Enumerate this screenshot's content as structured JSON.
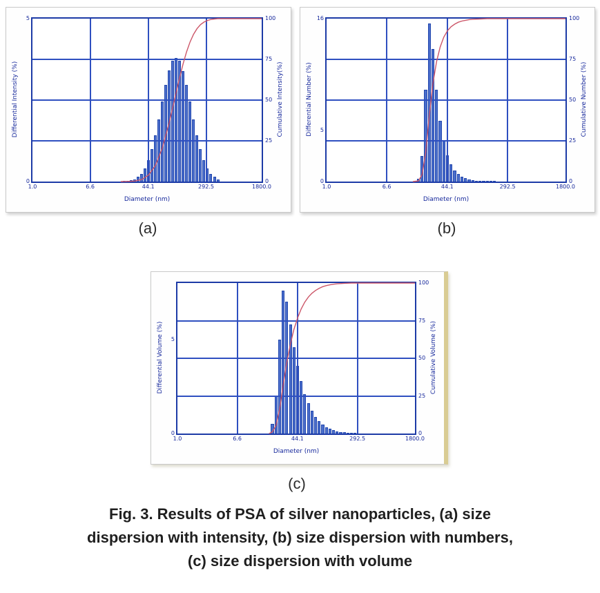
{
  "figure": {
    "caption_lines": [
      "Fig. 3. Results of PSA of silver nanoparticles, (a) size",
      "dispersion with intensity, (b) size dispersion with numbers,",
      "(c) size dispersion with volume"
    ]
  },
  "colors": {
    "bar_fill": "#4a6ecb",
    "bar_edge": "#2347ae",
    "grid": "#2e4fc0",
    "frame": "#1c3aa6",
    "curve": "#cc5668",
    "axis_text": "#15279b"
  },
  "chart_data": [
    {
      "type": "bar",
      "panel_label": "(a)",
      "xlabel": "Diameter (nm)",
      "ylabel_left": "Differential Intensity (%)",
      "ylabel_right": "Cumulative Intensity(%)",
      "x_scale": "log",
      "grid": true,
      "xlim": [
        1,
        1800
      ],
      "ylim_left": [
        0,
        5
      ],
      "ylim_right": [
        0,
        100
      ],
      "x_ticks": [
        {
          "label": "1.0",
          "value": 1
        },
        {
          "label": "6.6",
          "value": 6.6
        },
        {
          "label": "44.1",
          "value": 44.1
        },
        {
          "label": "292.5",
          "value": 292.5
        },
        {
          "label": "1800.0",
          "value": 1800
        }
      ],
      "left_ticks": [
        {
          "label": "0",
          "value": 0
        },
        {
          "label": "5",
          "value": 5
        }
      ],
      "right_ticks": [
        {
          "label": "0",
          "value": 0
        },
        {
          "label": "25",
          "value": 25
        },
        {
          "label": "50",
          "value": 50
        },
        {
          "label": "75",
          "value": 75
        },
        {
          "label": "100",
          "value": 100
        }
      ],
      "bars": [
        [
          20,
          0.01
        ],
        [
          22.4,
          0.02
        ],
        [
          25.1,
          0.04
        ],
        [
          28.1,
          0.07
        ],
        [
          31.5,
          0.14
        ],
        [
          35.3,
          0.24
        ],
        [
          39.5,
          0.41
        ],
        [
          44.3,
          0.65
        ],
        [
          49.6,
          0.99
        ],
        [
          55.6,
          1.41
        ],
        [
          62.3,
          1.91
        ],
        [
          69.8,
          2.45
        ],
        [
          78.2,
          2.96
        ],
        [
          87.6,
          3.41
        ],
        [
          98.1,
          3.7
        ],
        [
          109.9,
          3.8
        ],
        [
          123.1,
          3.7
        ],
        [
          137.9,
          3.4
        ],
        [
          154.5,
          2.96
        ],
        [
          173.1,
          2.45
        ],
        [
          193.9,
          1.9
        ],
        [
          217.2,
          1.41
        ],
        [
          243.3,
          0.99
        ],
        [
          272.6,
          0.65
        ],
        [
          305.4,
          0.41
        ],
        [
          342.1,
          0.24
        ],
        [
          383.2,
          0.14
        ],
        [
          429.3,
          0.07
        ]
      ],
      "cumulative": [
        [
          18,
          0
        ],
        [
          22.4,
          0.1
        ],
        [
          28.1,
          0.3
        ],
        [
          35.3,
          1.2
        ],
        [
          44.3,
          3.9
        ],
        [
          55.6,
          9.8
        ],
        [
          69.8,
          20.6
        ],
        [
          87.6,
          36.3
        ],
        [
          98.1,
          45.4
        ],
        [
          109.9,
          54.8
        ],
        [
          123.1,
          63.9
        ],
        [
          137.9,
          72.3
        ],
        [
          154.5,
          79.6
        ],
        [
          173.1,
          85.7
        ],
        [
          193.9,
          90.4
        ],
        [
          217.2,
          93.8
        ],
        [
          243.3,
          96.3
        ],
        [
          272.6,
          97.9
        ],
        [
          305.4,
          98.9
        ],
        [
          342.1,
          99.5
        ],
        [
          383.2,
          99.8
        ],
        [
          429.3,
          100
        ],
        [
          1800,
          100
        ]
      ]
    },
    {
      "type": "bar",
      "panel_label": "(b)",
      "xlabel": "Diameter (nm)",
      "ylabel_left": "Differential Number (%)",
      "ylabel_right": "Cumulative Number (%)",
      "x_scale": "log",
      "grid": true,
      "xlim": [
        1,
        1800
      ],
      "ylim_left": [
        0,
        16
      ],
      "ylim_right": [
        0,
        100
      ],
      "x_ticks": [
        {
          "label": "1.0",
          "value": 1
        },
        {
          "label": "6.6",
          "value": 6.6
        },
        {
          "label": "44.1",
          "value": 44.1
        },
        {
          "label": "292.5",
          "value": 292.5
        },
        {
          "label": "1800.0",
          "value": 1800
        }
      ],
      "left_ticks": [
        {
          "label": "0",
          "value": 0
        },
        {
          "label": "5",
          "value": 5
        },
        {
          "label": "16",
          "value": 16
        }
      ],
      "right_ticks": [
        {
          "label": "0",
          "value": 0
        },
        {
          "label": "25",
          "value": 25
        },
        {
          "label": "50",
          "value": 50
        },
        {
          "label": "75",
          "value": 75
        },
        {
          "label": "100",
          "value": 100
        }
      ],
      "bars": [
        [
          17.8,
          0.3
        ],
        [
          20,
          2.5
        ],
        [
          22.4,
          9
        ],
        [
          25.1,
          15.5
        ],
        [
          28.1,
          13
        ],
        [
          31.5,
          9
        ],
        [
          35.3,
          6
        ],
        [
          39.5,
          4
        ],
        [
          44.3,
          2.6
        ],
        [
          49.6,
          1.7
        ],
        [
          55.6,
          1.1
        ],
        [
          62.3,
          0.75
        ],
        [
          69.8,
          0.5
        ],
        [
          78.2,
          0.35
        ],
        [
          87.6,
          0.22
        ],
        [
          98.1,
          0.15
        ],
        [
          109.9,
          0.1
        ],
        [
          123.1,
          0.07
        ],
        [
          137.9,
          0.05
        ],
        [
          154.5,
          0.03
        ],
        [
          173.1,
          0.02
        ],
        [
          193.9,
          0.01
        ]
      ],
      "cumulative": [
        [
          15,
          0
        ],
        [
          17.8,
          0.4
        ],
        [
          20,
          4.2
        ],
        [
          22.4,
          17.6
        ],
        [
          25.1,
          40.8
        ],
        [
          28.1,
          60.2
        ],
        [
          31.5,
          73.6
        ],
        [
          35.3,
          82.6
        ],
        [
          39.5,
          88.6
        ],
        [
          44.3,
          92.5
        ],
        [
          49.6,
          95
        ],
        [
          55.6,
          96.6
        ],
        [
          62.3,
          97.8
        ],
        [
          69.8,
          98.5
        ],
        [
          78.2,
          99
        ],
        [
          87.6,
          99.4
        ],
        [
          98.1,
          99.6
        ],
        [
          123.1,
          99.8
        ],
        [
          154.5,
          100
        ],
        [
          1800,
          100
        ]
      ]
    },
    {
      "type": "bar",
      "panel_label": "(c)",
      "xlabel": "Diameter (nm)",
      "ylabel_left": "Differential Volume (%)",
      "ylabel_right": "Cumulative Volume (%)",
      "x_scale": "log",
      "grid": true,
      "xlim": [
        1,
        1800
      ],
      "ylim_left": [
        0,
        8
      ],
      "ylim_right": [
        0,
        100
      ],
      "x_ticks": [
        {
          "label": "1.0",
          "value": 1
        },
        {
          "label": "6.6",
          "value": 6.6
        },
        {
          "label": "44.1",
          "value": 44.1
        },
        {
          "label": "292.5",
          "value": 292.5
        },
        {
          "label": "1800.0",
          "value": 1800
        }
      ],
      "left_ticks": [
        {
          "label": "0",
          "value": 0
        },
        {
          "label": "5",
          "value": 5
        }
      ],
      "right_ticks": [
        {
          "label": "0",
          "value": 0
        },
        {
          "label": "25",
          "value": 25
        },
        {
          "label": "50",
          "value": 50
        },
        {
          "label": "75",
          "value": 75
        },
        {
          "label": "100",
          "value": 100
        }
      ],
      "bars": [
        [
          20,
          0.5
        ],
        [
          22.4,
          2
        ],
        [
          25.1,
          5
        ],
        [
          28.1,
          7.6
        ],
        [
          31.5,
          7
        ],
        [
          35.3,
          5.8
        ],
        [
          39.5,
          4.6
        ],
        [
          44.3,
          3.6
        ],
        [
          49.6,
          2.8
        ],
        [
          55.6,
          2.1
        ],
        [
          62.3,
          1.6
        ],
        [
          69.8,
          1.2
        ],
        [
          78.2,
          0.9
        ],
        [
          87.6,
          0.65
        ],
        [
          98.1,
          0.48
        ],
        [
          109.9,
          0.35
        ],
        [
          123.1,
          0.25
        ],
        [
          137.9,
          0.18
        ],
        [
          154.5,
          0.13
        ],
        [
          173.1,
          0.09
        ],
        [
          193.9,
          0.06
        ],
        [
          217.2,
          0.04
        ],
        [
          243.3,
          0.03
        ],
        [
          272.6,
          0.02
        ]
      ],
      "cumulative": [
        [
          18,
          0
        ],
        [
          20,
          1.1
        ],
        [
          22.4,
          5.3
        ],
        [
          25.1,
          16
        ],
        [
          28.1,
          32.1
        ],
        [
          31.5,
          47
        ],
        [
          35.3,
          59.4
        ],
        [
          39.5,
          69.2
        ],
        [
          44.3,
          76.8
        ],
        [
          49.6,
          82.8
        ],
        [
          55.6,
          87.3
        ],
        [
          62.3,
          90.7
        ],
        [
          69.8,
          93.2
        ],
        [
          78.2,
          95.1
        ],
        [
          87.6,
          96.5
        ],
        [
          98.1,
          97.6
        ],
        [
          109.9,
          98.3
        ],
        [
          123.1,
          98.8
        ],
        [
          137.9,
          99.2
        ],
        [
          154.5,
          99.5
        ],
        [
          193.9,
          99.8
        ],
        [
          243.3,
          100
        ],
        [
          1800,
          100
        ]
      ]
    }
  ]
}
